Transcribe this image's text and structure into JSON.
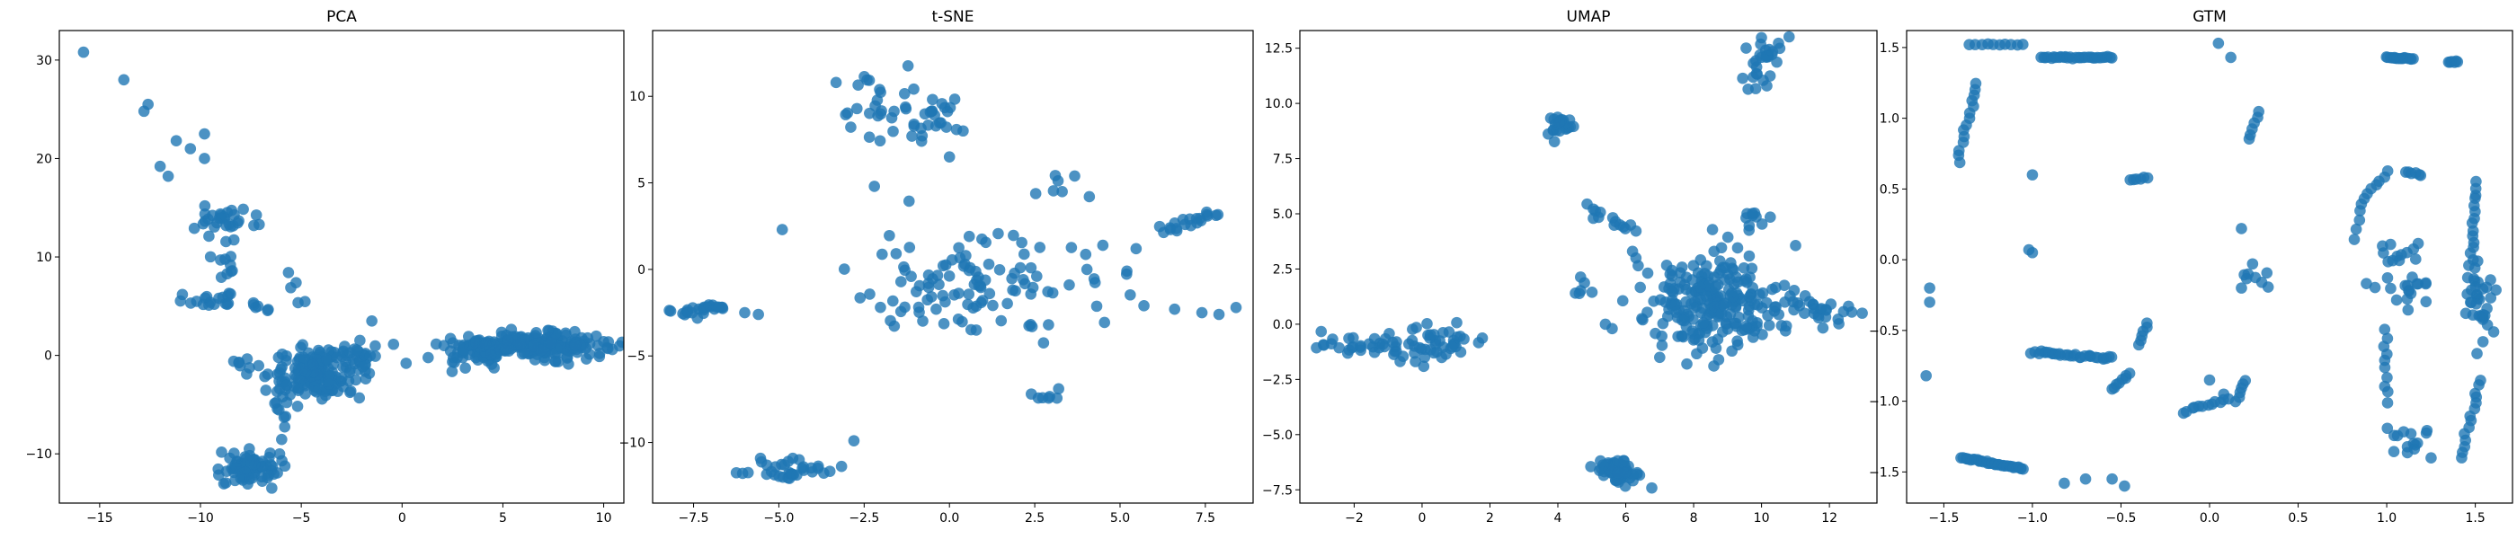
{
  "chart_data": [
    {
      "type": "scatter",
      "title": "PCA",
      "xlabel": "",
      "ylabel": "",
      "xlim": [
        -17,
        11
      ],
      "ylim": [
        -15,
        33
      ],
      "xticks": [
        -15,
        -10,
        -5,
        0,
        5,
        10
      ],
      "xtick_labels": [
        "−15",
        "−10",
        "−5",
        "0",
        "5",
        "10"
      ],
      "yticks": [
        -10,
        0,
        10,
        20,
        30
      ],
      "ytick_labels": [
        "−10",
        "0",
        "10",
        "20",
        "30"
      ],
      "color": "#1f77b4",
      "clusters": [
        {
          "cx": 6.5,
          "cy": 1.0,
          "sx": 2.0,
          "sy": 0.6,
          "n": 230
        },
        {
          "cx": 3.5,
          "cy": 0.0,
          "sx": 0.8,
          "sy": 0.8,
          "n": 30
        },
        {
          "cx": -4.2,
          "cy": -1.8,
          "sx": 1.1,
          "sy": 1.3,
          "n": 150
        },
        {
          "cx": -2.0,
          "cy": 0.0,
          "sx": 0.8,
          "sy": 0.7,
          "n": 25
        },
        {
          "cx": -7.6,
          "cy": -11.5,
          "sx": 0.7,
          "sy": 0.9,
          "n": 70
        },
        {
          "cx": -6.0,
          "cy": -5.5,
          "sx": 0.4,
          "sy": 1.4,
          "n": 10
        },
        {
          "cx": -8.8,
          "cy": 13.8,
          "sx": 0.9,
          "sy": 0.7,
          "n": 30
        },
        {
          "cx": -8.8,
          "cy": 9.5,
          "sx": 0.4,
          "sy": 1.6,
          "n": 10
        },
        {
          "cx": -9.5,
          "cy": 5.5,
          "sx": 1.0,
          "sy": 0.4,
          "n": 20
        },
        {
          "cx": -6.8,
          "cy": 4.8,
          "sx": 0.3,
          "sy": 0.3,
          "n": 4
        },
        {
          "cx": -5.2,
          "cy": 6.8,
          "sx": 0.4,
          "sy": 1.2,
          "n": 5
        },
        {
          "cx": -7.8,
          "cy": -1.5,
          "sx": 0.5,
          "sy": 1.0,
          "n": 8
        }
      ],
      "points": [
        [
          -15.8,
          30.8
        ],
        [
          -13.8,
          28.0
        ],
        [
          -12.6,
          25.5
        ],
        [
          -12.8,
          24.8
        ],
        [
          -12.0,
          19.2
        ],
        [
          -11.6,
          18.2
        ],
        [
          -11.2,
          21.8
        ],
        [
          -10.5,
          21.0
        ],
        [
          -9.8,
          22.5
        ],
        [
          -9.8,
          20.0
        ],
        [
          -1.5,
          3.5
        ],
        [
          0.2,
          -0.8
        ],
        [
          9.8,
          0.2
        ]
      ]
    },
    {
      "type": "scatter",
      "title": "t-SNE",
      "xlabel": "",
      "ylabel": "",
      "xlim": [
        -8.7,
        8.9
      ],
      "ylim": [
        -13.5,
        13.8
      ],
      "xticks": [
        -7.5,
        -5.0,
        -2.5,
        0.0,
        2.5,
        5.0,
        7.5
      ],
      "xtick_labels": [
        "−7.5",
        "−5.0",
        "−2.5",
        "0.0",
        "2.5",
        "5.0",
        "7.5"
      ],
      "yticks": [
        -10,
        -5,
        0,
        5,
        10
      ],
      "ytick_labels": [
        "−10",
        "−5",
        "0",
        "5",
        "10"
      ],
      "color": "#1f77b4",
      "clusters": [
        {
          "cx": -2.2,
          "cy": 9.8,
          "sx": 0.5,
          "sy": 1.2,
          "n": 25
        },
        {
          "cx": -0.5,
          "cy": 8.8,
          "sx": 0.5,
          "sy": 0.6,
          "n": 25
        },
        {
          "cx": -4.5,
          "cy": -11.6,
          "sx": 0.6,
          "sy": 0.3,
          "n": 35
        },
        {
          "cx": 0.8,
          "cy": -0.8,
          "sx": 1.9,
          "sy": 1.5,
          "n": 110
        },
        {
          "cx": 3.2,
          "cy": 4.8,
          "sx": 0.4,
          "sy": 0.3,
          "n": 6
        },
        {
          "cx": 2.8,
          "cy": -7.4,
          "sx": 0.2,
          "sy": 0.1,
          "n": 5
        }
      ],
      "lines": [
        {
          "x0": -8.0,
          "y0": -2.45,
          "x1": -6.6,
          "y1": -2.1,
          "n": 25,
          "jitter": 0.06
        },
        {
          "x0": 6.2,
          "y0": 2.2,
          "x1": 7.8,
          "y1": 3.3,
          "n": 20,
          "jitter": 0.06
        }
      ],
      "points": [
        [
          -6.0,
          -2.5
        ],
        [
          -5.6,
          -2.6
        ],
        [
          -4.9,
          2.3
        ],
        [
          -2.2,
          4.8
        ],
        [
          0.0,
          6.5
        ],
        [
          0.4,
          8.0
        ],
        [
          5.2,
          -0.1
        ],
        [
          5.7,
          -2.1
        ],
        [
          6.6,
          -2.3
        ],
        [
          7.4,
          -2.5
        ],
        [
          7.9,
          -2.6
        ],
        [
          8.4,
          -2.2
        ],
        [
          2.4,
          -7.2
        ],
        [
          3.2,
          -6.9
        ],
        [
          4.1,
          4.2
        ],
        [
          -2.8,
          -9.9
        ]
      ]
    },
    {
      "type": "scatter",
      "title": "UMAP",
      "xlabel": "",
      "ylabel": "",
      "xlim": [
        -3.6,
        13.4
      ],
      "ylim": [
        -8.1,
        13.3
      ],
      "xticks": [
        -2,
        0,
        2,
        4,
        6,
        8,
        10,
        12
      ],
      "xtick_labels": [
        "−2",
        "0",
        "2",
        "4",
        "6",
        "8",
        "10",
        "12"
      ],
      "yticks": [
        -7.5,
        -5.0,
        -2.5,
        0.0,
        2.5,
        5.0,
        7.5,
        10.0,
        12.5
      ],
      "ytick_labels": [
        "−7.5",
        "−5.0",
        "−2.5",
        "0.0",
        "2.5",
        "5.0",
        "7.5",
        "10.0",
        "12.5"
      ],
      "color": "#1f77b4",
      "clusters": [
        {
          "cx": 8.6,
          "cy": 1.0,
          "sx": 1.0,
          "sy": 1.1,
          "n": 230
        },
        {
          "cx": 5.8,
          "cy": -6.7,
          "sx": 0.3,
          "sy": 0.3,
          "n": 60
        },
        {
          "cx": 4.1,
          "cy": 9.0,
          "sx": 0.2,
          "sy": 0.25,
          "n": 25
        },
        {
          "cx": 0.5,
          "cy": -0.8,
          "sx": 0.6,
          "sy": 0.5,
          "n": 35
        },
        {
          "cx": 4.7,
          "cy": 1.5,
          "sx": 0.2,
          "sy": 0.2,
          "n": 6
        },
        {
          "cx": 9.9,
          "cy": 4.6,
          "sx": 0.3,
          "sy": 0.3,
          "n": 10
        }
      ],
      "lines": [
        {
          "x0": -3.0,
          "y0": -1.05,
          "x1": -0.5,
          "y1": -0.9,
          "n": 30,
          "jitter": 0.12
        },
        {
          "x0": -0.8,
          "y0": -1.6,
          "x1": 0.5,
          "y1": -1.5,
          "n": 10,
          "jitter": 0.12
        },
        {
          "x0": 9.8,
          "y0": 11.0,
          "x1": 10.2,
          "y1": 12.7,
          "n": 30,
          "jitter": 0.18
        },
        {
          "x0": 4.9,
          "y0": 5.2,
          "x1": 6.2,
          "y1": 4.2,
          "n": 14,
          "jitter": 0.06
        },
        {
          "x0": 10.5,
          "y0": 0.9,
          "x1": 12.6,
          "y1": 0.5,
          "n": 30,
          "jitter": 0.15
        }
      ],
      "points": [
        [
          6.2,
          3.3
        ],
        [
          5.4,
          0.0
        ],
        [
          5.6,
          -0.2
        ],
        [
          6.3,
          3.0
        ],
        [
          7.0,
          -1.5
        ],
        [
          7.8,
          -1.8
        ],
        [
          8.6,
          3.3
        ],
        [
          6.5,
          0.2
        ]
      ]
    },
    {
      "type": "scatter",
      "title": "GTM",
      "xlabel": "",
      "ylabel": "",
      "xlim": [
        -1.71,
        1.71
      ],
      "ylim": [
        -1.72,
        1.62
      ],
      "xticks": [
        -1.5,
        -1.0,
        -0.5,
        0.0,
        0.5,
        1.0,
        1.5
      ],
      "xtick_labels": [
        "−1.5",
        "−1.0",
        "−0.5",
        "0.0",
        "0.5",
        "1.0",
        "1.5"
      ],
      "yticks": [
        -1.5,
        -1.0,
        -0.5,
        0.0,
        0.5,
        1.0,
        1.5
      ],
      "ytick_labels": [
        "−1.5",
        "−1.0",
        "−0.5",
        "0.0",
        "0.5",
        "1.0",
        "1.5"
      ],
      "color": "#1f77b4",
      "clusters": [
        {
          "cx": 1.1,
          "cy": -0.1,
          "sx": 0.08,
          "sy": 0.15,
          "n": 30
        },
        {
          "cx": 1.52,
          "cy": -0.3,
          "sx": 0.04,
          "sy": 0.15,
          "n": 35
        },
        {
          "cx": 1.1,
          "cy": -1.25,
          "sx": 0.07,
          "sy": 0.1,
          "n": 15
        },
        {
          "cx": 0.25,
          "cy": -0.15,
          "sx": 0.03,
          "sy": 0.08,
          "n": 8
        }
      ],
      "lines": [
        {
          "x0": -1.35,
          "y0": 1.52,
          "x1": -1.05,
          "y1": 1.52,
          "n": 10,
          "jitter": 0.01
        },
        {
          "x0": -0.95,
          "y0": 1.43,
          "x1": -0.55,
          "y1": 1.43,
          "n": 30,
          "jitter": 0.01
        },
        {
          "x0": -1.4,
          "y0": -1.4,
          "x1": -1.05,
          "y1": -1.48,
          "n": 35,
          "jitter": 0.01
        },
        {
          "x0": -1.0,
          "y0": -0.65,
          "x1": -0.55,
          "y1": -0.7,
          "n": 30,
          "jitter": 0.02
        },
        {
          "x0": 1.0,
          "y0": 1.43,
          "x1": 1.15,
          "y1": 1.42,
          "n": 15,
          "jitter": 0.01
        },
        {
          "x0": 1.35,
          "y0": 1.4,
          "x1": 1.4,
          "y1": 1.4,
          "n": 6,
          "jitter": 0.01
        },
        {
          "x0": -1.42,
          "y0": 0.7,
          "x1": -1.32,
          "y1": 1.25,
          "n": 14,
          "jitter": 0.02
        },
        {
          "x0": 1.48,
          "y0": 0.0,
          "x1": 1.5,
          "y1": 0.55,
          "n": 14,
          "jitter": 0.02
        },
        {
          "x0": 1.42,
          "y0": -1.4,
          "x1": 1.53,
          "y1": -0.85,
          "n": 14,
          "jitter": 0.02
        },
        {
          "x0": 1.0,
          "y0": -1.0,
          "x1": 1.0,
          "y1": -0.5,
          "n": 10,
          "jitter": 0.02
        },
        {
          "x0": 0.22,
          "y0": 0.85,
          "x1": 0.28,
          "y1": 1.05,
          "n": 6,
          "jitter": 0.01
        },
        {
          "x0": -0.15,
          "y0": -1.08,
          "x1": 0.1,
          "y1": -0.98,
          "n": 12,
          "jitter": 0.015
        },
        {
          "x0": 0.15,
          "y0": -1.0,
          "x1": 0.2,
          "y1": -0.85,
          "n": 6,
          "jitter": 0.01
        },
        {
          "x0": -0.55,
          "y0": -0.92,
          "x1": -0.45,
          "y1": -0.8,
          "n": 8,
          "jitter": 0.015
        },
        {
          "x0": -0.4,
          "y0": -0.6,
          "x1": -0.35,
          "y1": -0.45,
          "n": 6,
          "jitter": 0.01
        },
        {
          "x0": -0.45,
          "y0": 0.56,
          "x1": -0.35,
          "y1": 0.58,
          "n": 6,
          "jitter": 0.01
        },
        {
          "x0": 0.85,
          "y0": 0.4,
          "x1": 1.0,
          "y1": 0.62,
          "n": 8,
          "jitter": 0.015
        },
        {
          "x0": 1.1,
          "y0": 0.62,
          "x1": 1.2,
          "y1": 0.6,
          "n": 6,
          "jitter": 0.01
        },
        {
          "x0": 0.82,
          "y0": 0.15,
          "x1": 0.85,
          "y1": 0.35,
          "n": 4,
          "jitter": 0.01
        }
      ],
      "points": [
        [
          -1.58,
          -0.2
        ],
        [
          -1.58,
          -0.3
        ],
        [
          -1.6,
          -0.82
        ],
        [
          -1.0,
          0.6
        ],
        [
          -1.0,
          0.05
        ],
        [
          -1.02,
          0.07
        ],
        [
          0.05,
          1.53
        ],
        [
          0.12,
          1.43
        ],
        [
          -0.7,
          -1.55
        ],
        [
          -0.55,
          -1.55
        ],
        [
          -0.48,
          -1.6
        ],
        [
          -0.82,
          -1.58
        ],
        [
          0.0,
          -0.85
        ],
        [
          0.08,
          -0.95
        ],
        [
          0.18,
          -0.2
        ],
        [
          0.18,
          0.22
        ]
      ]
    }
  ]
}
